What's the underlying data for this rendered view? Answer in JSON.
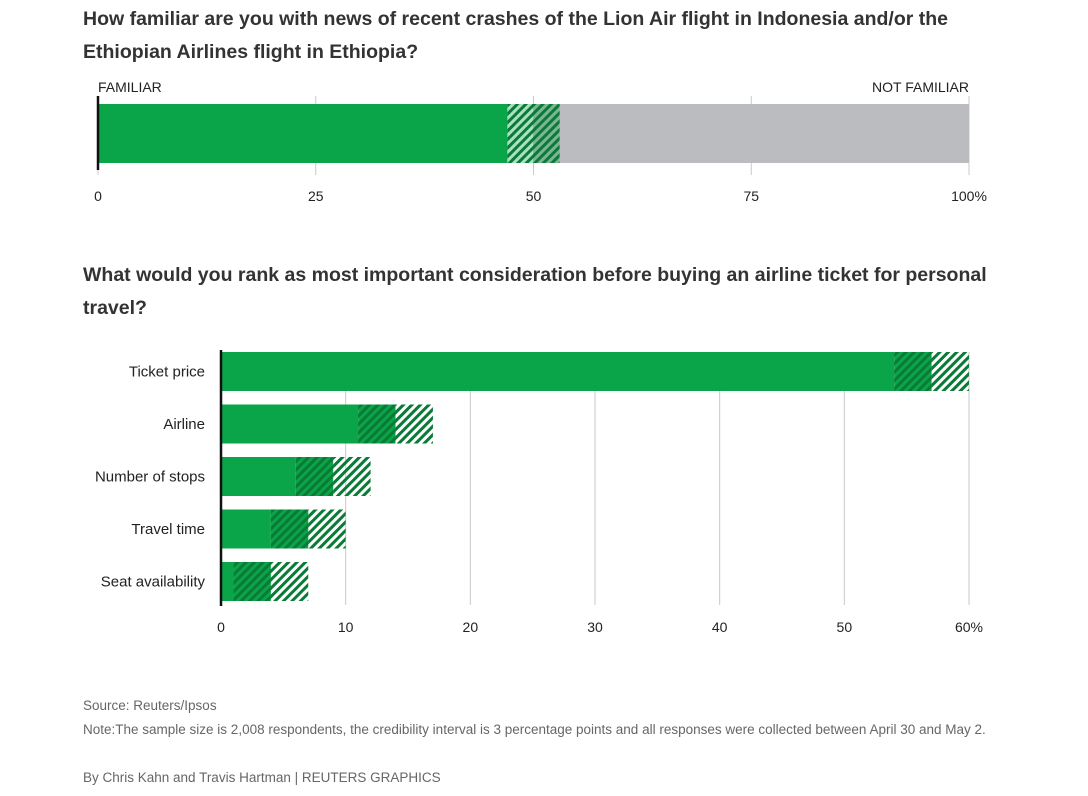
{
  "chart_data": [
    {
      "type": "bar",
      "orientation": "horizontal",
      "stacked": true,
      "title": "How familiar are you with news of recent crashes of the Lion Air flight in Indonesia and/or the Ethiopian Airlines flight in Ethiopia?",
      "end_labels": {
        "left": "FAMILIAR",
        "right": "NOT FAMILIAR"
      },
      "xlim": [
        0,
        100
      ],
      "xticks": [
        "0",
        "25",
        "50",
        "75",
        "100%"
      ],
      "xtick_values": [
        0,
        25,
        50,
        75,
        100
      ],
      "familiar_value": 50,
      "credibility_interval": 3,
      "grid": true,
      "colors": {
        "familiar": "#0aa548",
        "not_familiar": "#bbbcbf",
        "interval": "#0a7a37"
      }
    },
    {
      "type": "bar",
      "orientation": "horizontal",
      "title": "What would you rank as most important consideration before buying an airline ticket for personal travel?",
      "categories": [
        "Ticket price",
        "Airline",
        "Number of stops",
        "Travel time",
        "Seat availability"
      ],
      "values": [
        57,
        14,
        9,
        7,
        4
      ],
      "credibility_interval": 3,
      "xlim": [
        0,
        60
      ],
      "xticks": [
        "0",
        "10",
        "20",
        "30",
        "40",
        "50",
        "60%"
      ],
      "xtick_values": [
        0,
        10,
        20,
        30,
        40,
        50,
        60
      ],
      "grid": true,
      "colors": {
        "bar": "#0aa548",
        "interval": "#0a7a37"
      }
    }
  ],
  "footer": {
    "source": "Source: Reuters/Ipsos",
    "note": "Note:The sample size is 2,008 respondents, the credibility interval is 3 percentage points and all responses were collected between April 30 and May 2.",
    "byline": "By Chris Kahn and Travis Hartman | REUTERS GRAPHICS"
  }
}
